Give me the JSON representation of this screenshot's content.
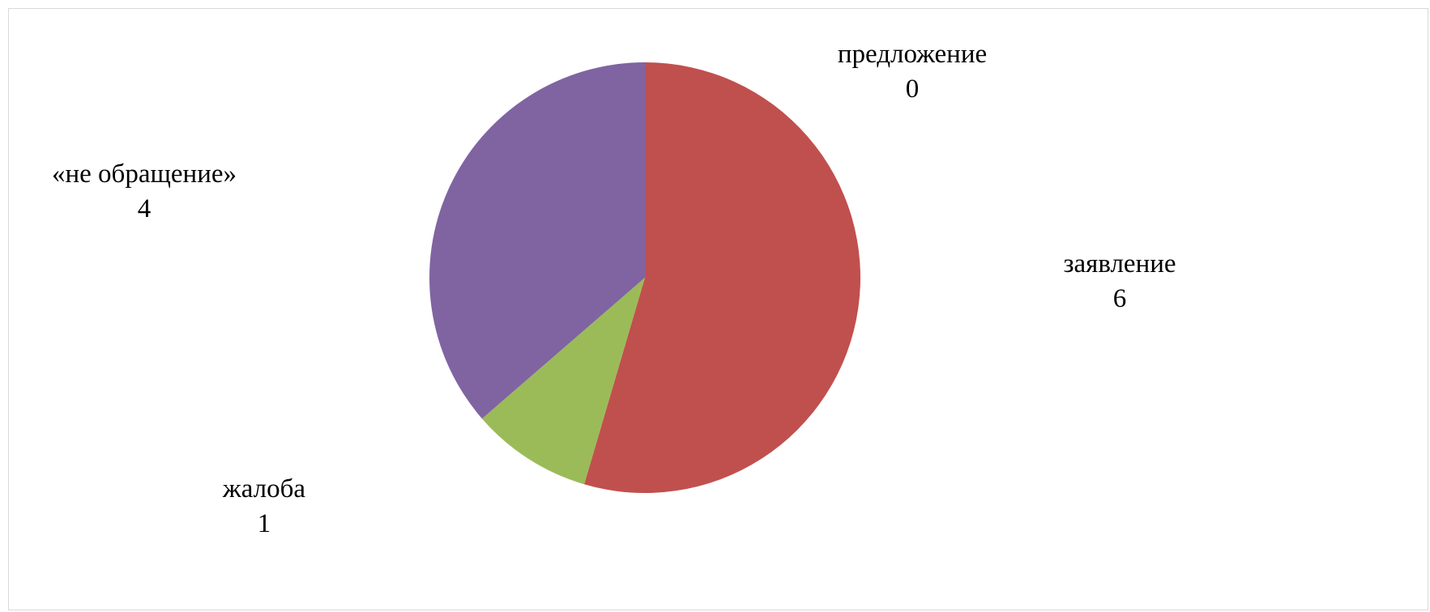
{
  "chart_data": {
    "type": "pie",
    "categories": [
      "предложение",
      "заявление",
      "жалоба",
      "«не обращение»"
    ],
    "values": [
      0,
      6,
      1,
      4
    ],
    "colors": [
      "#4f81bd",
      "#c0504d",
      "#9bbb59",
      "#8064a2"
    ],
    "start_angle_deg": 0,
    "direction": "clockwise",
    "legend": "none",
    "data_labels": [
      {
        "category": "предложение",
        "value": "0"
      },
      {
        "category": "заявление",
        "value": "6"
      },
      {
        "category": "жалоба",
        "value": "1"
      },
      {
        "category": "«не обращение»",
        "value": "4"
      }
    ]
  }
}
